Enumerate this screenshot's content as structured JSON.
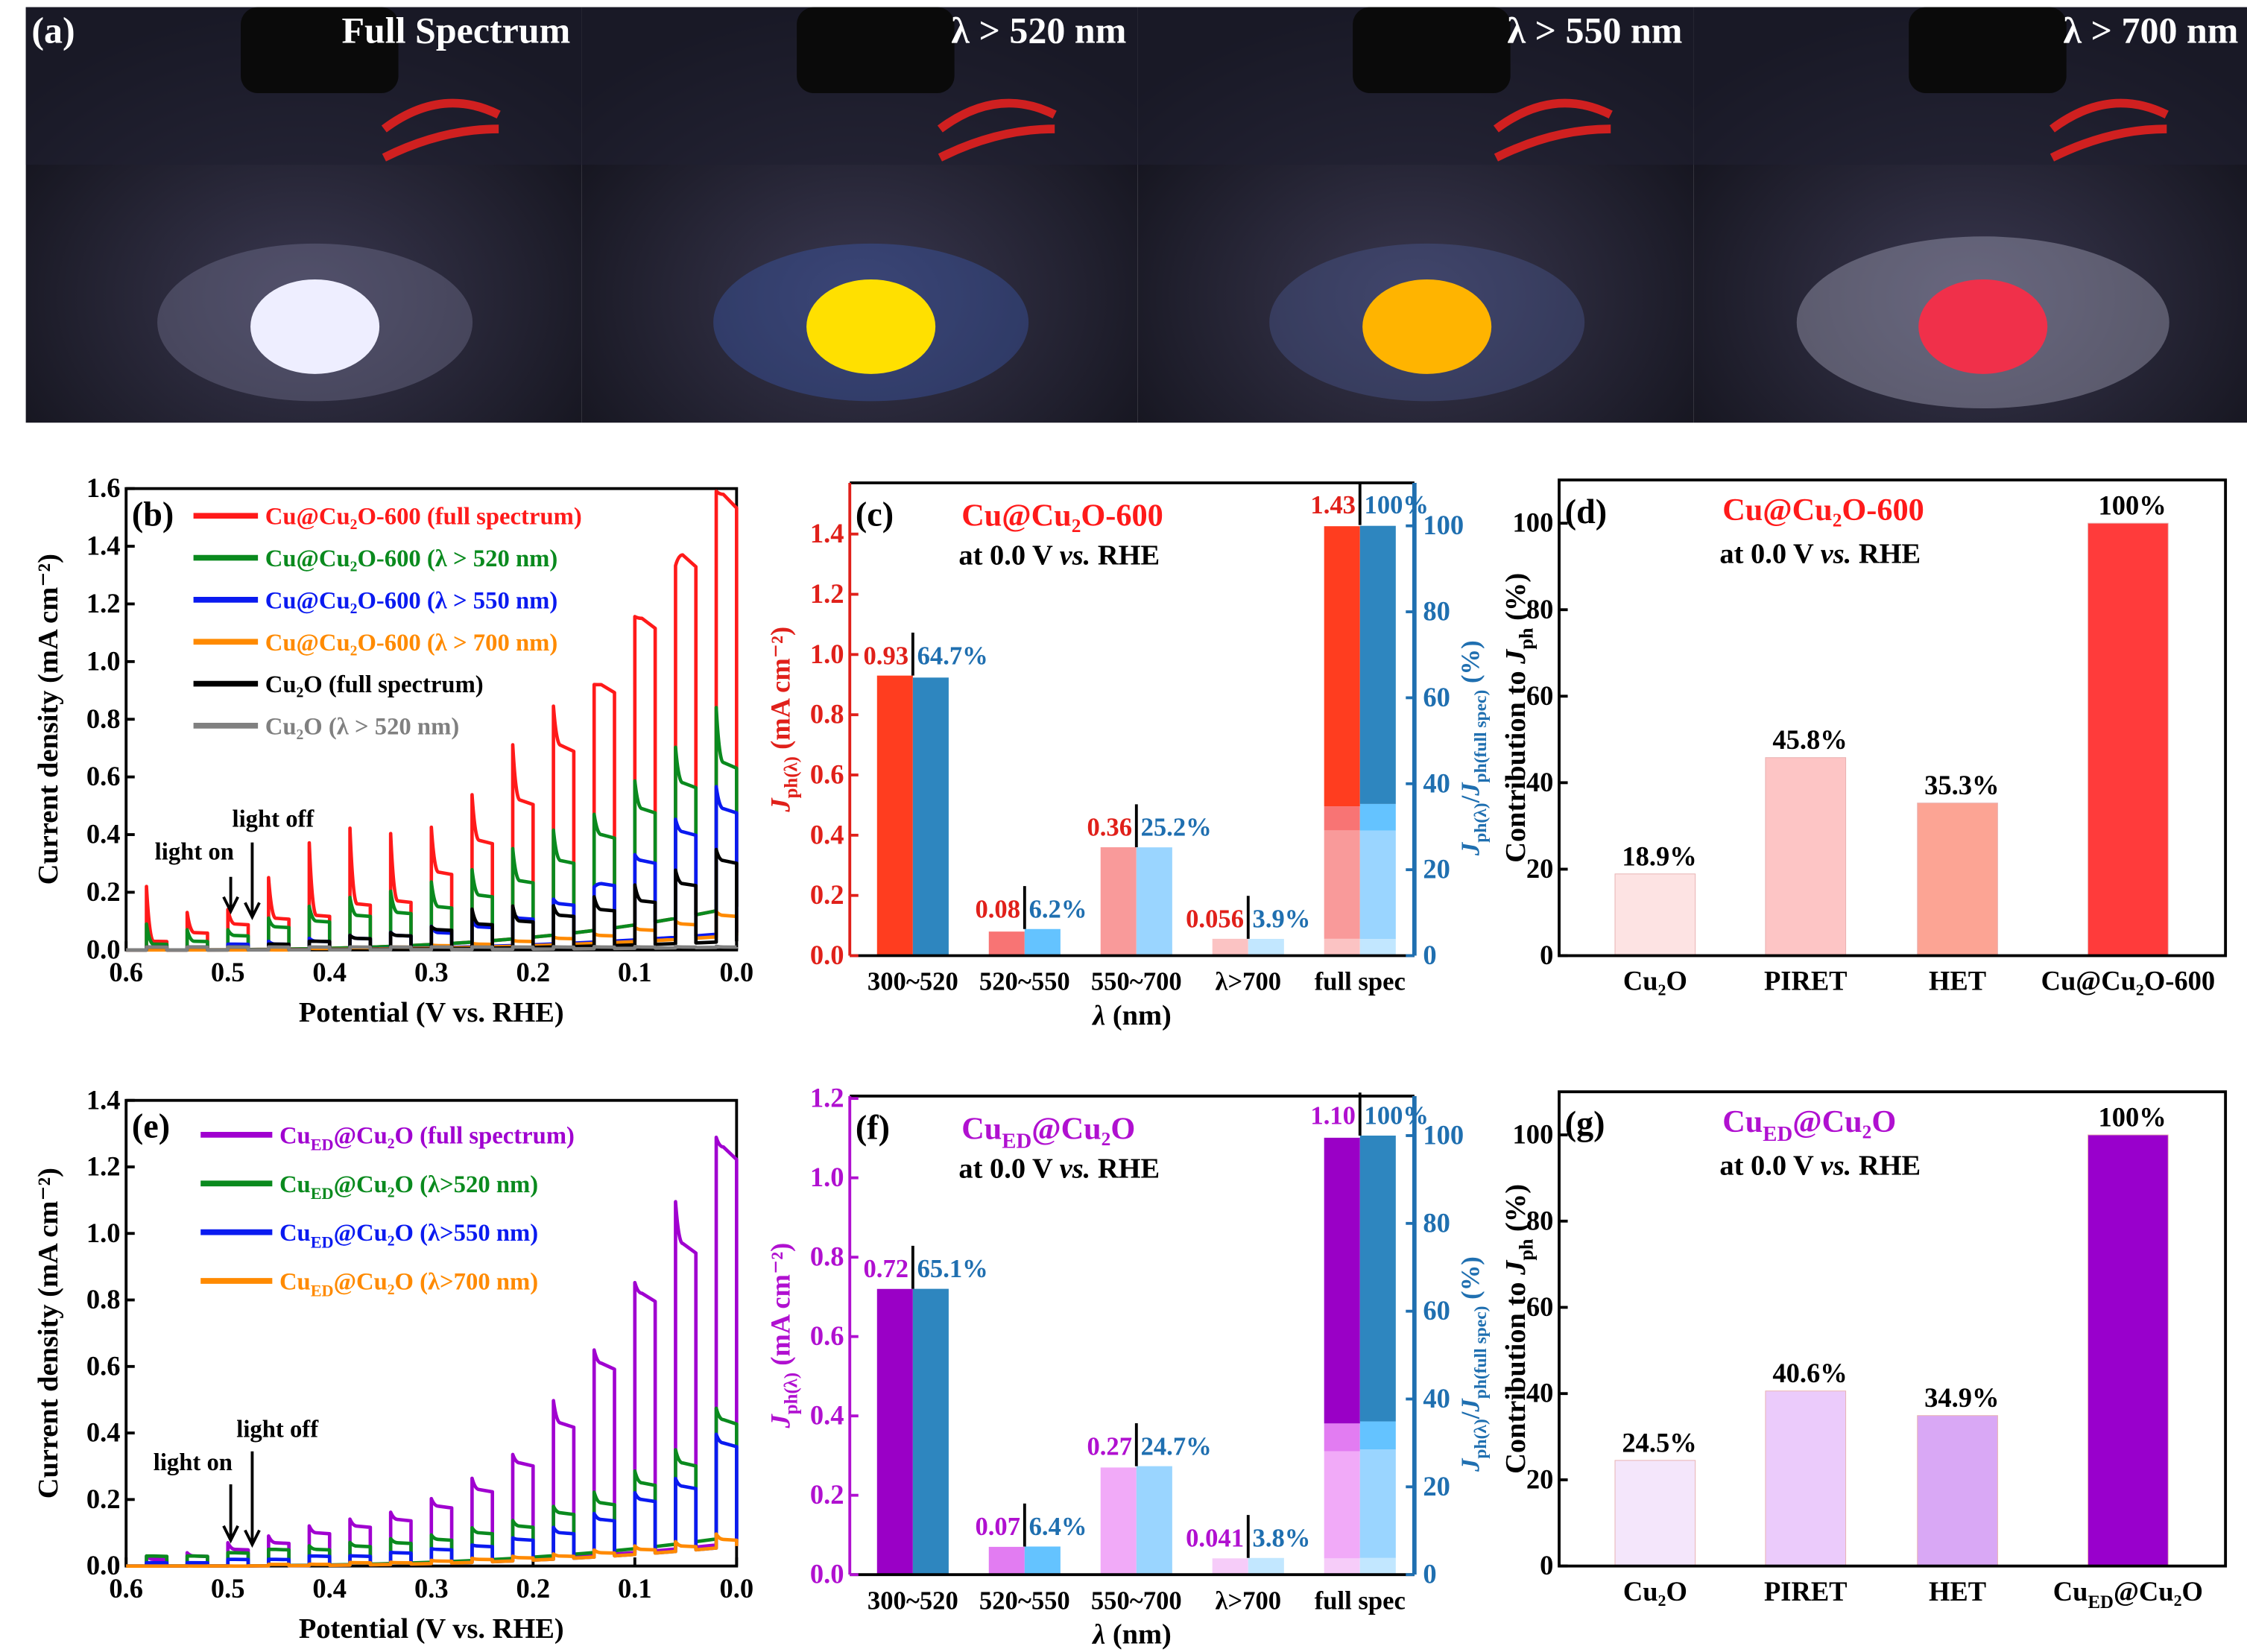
{
  "panel_a": {
    "label": "(a)",
    "photos": [
      {
        "caption": "Full Spectrum",
        "glow": "#EEEEFF",
        "halo": "#8080A0"
      },
      {
        "caption": "λ > 520 nm",
        "glow": "#FFE000",
        "halo": "#4060C0"
      },
      {
        "caption": "λ > 550 nm",
        "glow": "#FFB400",
        "halo": "#5060A0"
      },
      {
        "caption": "λ > 700 nm",
        "glow": "#F0304A",
        "halo": "#C0C0D8"
      }
    ]
  },
  "chart_data": [
    {
      "type": "line",
      "panel_label": "(b)",
      "xlabel": "Potential (V vs. RHE)",
      "ylabel": "Current density (mA cm⁻²)",
      "xlim": [
        0.6,
        0.0
      ],
      "ylim": [
        0,
        1.6
      ],
      "xticks": [
        "0.6",
        "0.5",
        "0.4",
        "0.3",
        "0.2",
        "0.1",
        "0.0"
      ],
      "yticks": [
        "0.0",
        "0.2",
        "0.4",
        "0.6",
        "0.8",
        "1.0",
        "1.2",
        "1.4",
        "1.6"
      ],
      "pulse_on_potentials": [
        0.58,
        0.54,
        0.5,
        0.46,
        0.42,
        0.38,
        0.34,
        0.3,
        0.26,
        0.22,
        0.18,
        0.14,
        0.1,
        0.06,
        0.02
      ],
      "pulse_width": 0.02,
      "annotations": {
        "light_on": "light on",
        "light_off": "light off"
      },
      "series": [
        {
          "name": "Cu@Cu₂O-600 (full spectrum)",
          "color": "#FF1A1A",
          "dark_at_0V": 0.15,
          "spikes": [
            0.22,
            0.13,
            0.14,
            0.25,
            0.37,
            0.42,
            0.4,
            0.42,
            0.53,
            0.7,
            0.83,
            0.9,
            1.13,
            1.3,
            1.55
          ],
          "plateaus": [
            0.03,
            0.06,
            0.09,
            0.11,
            0.12,
            0.16,
            0.17,
            0.27,
            0.38,
            0.52,
            0.71,
            0.92,
            1.15,
            1.37,
            1.58
          ]
        },
        {
          "name": "Cu@Cu₂O-600 (λ > 520 nm)",
          "color": "#0A8A1E",
          "dark_at_0V": 0.15,
          "spikes": [
            0.09,
            0.07,
            0.07,
            0.11,
            0.15,
            0.18,
            0.2,
            0.23,
            0.27,
            0.34,
            0.4,
            0.45,
            0.56,
            0.67,
            0.8
          ],
          "plateaus": [
            0.02,
            0.03,
            0.05,
            0.08,
            0.1,
            0.12,
            0.13,
            0.15,
            0.19,
            0.24,
            0.31,
            0.4,
            0.49,
            0.58,
            0.65
          ]
        },
        {
          "name": "Cu@Cu₂O-600 (λ > 550 nm)",
          "color": "#0A1AF0",
          "dark_at_0V": 0.06,
          "spikes": [
            0.01,
            0.01,
            0.02,
            0.03,
            0.04,
            0.05,
            0.06,
            0.08,
            0.1,
            0.13,
            0.17,
            0.21,
            0.32,
            0.44,
            0.55
          ],
          "plateaus": [
            0.01,
            0.01,
            0.02,
            0.02,
            0.03,
            0.04,
            0.05,
            0.06,
            0.08,
            0.11,
            0.16,
            0.23,
            0.31,
            0.41,
            0.49
          ]
        },
        {
          "name": "Cu@Cu₂O-600 (λ > 700 nm)",
          "color": "#FF8A00",
          "dark_at_0V": 0.05,
          "spikes": [
            0.0,
            0.0,
            0.0,
            0.0,
            0.005,
            0.008,
            0.01,
            0.015,
            0.02,
            0.03,
            0.04,
            0.05,
            0.07,
            0.09,
            0.12
          ],
          "plateaus": [
            0.0,
            0.0,
            0.0,
            0.0,
            0.005,
            0.008,
            0.01,
            0.015,
            0.02,
            0.03,
            0.04,
            0.05,
            0.07,
            0.09,
            0.12
          ]
        },
        {
          "name": "Cu₂O (full spectrum)",
          "color": "#000000",
          "dark_at_0V": 0.03,
          "spikes": [
            0.01,
            0.01,
            0.01,
            0.02,
            0.03,
            0.05,
            0.06,
            0.08,
            0.14,
            0.15,
            0.15,
            0.18,
            0.22,
            0.27,
            0.34
          ],
          "plateaus": [
            0.01,
            0.01,
            0.01,
            0.02,
            0.03,
            0.04,
            0.05,
            0.07,
            0.09,
            0.1,
            0.12,
            0.14,
            0.17,
            0.23,
            0.31
          ]
        },
        {
          "name": "Cu₂O (λ > 520 nm)",
          "color": "#808080",
          "dark_at_0V": 0.01,
          "spikes": [
            0.01,
            0.01,
            0.01,
            0.01,
            0.01,
            0.01,
            0.01,
            0.01,
            0.01,
            0.01,
            0.01,
            0.01,
            0.01,
            0.01,
            0.01
          ],
          "plateaus": [
            0.01,
            0.01,
            0.01,
            0.01,
            0.01,
            0.01,
            0.01,
            0.01,
            0.01,
            0.01,
            0.01,
            0.01,
            0.01,
            0.01,
            0.01
          ]
        }
      ]
    },
    {
      "type": "bar",
      "panel_label": "(c)",
      "title": "Cu@Cu₂O-600",
      "title_color": "#FF1A1A",
      "subtitle": [
        {
          "t": "at 0.0 V "
        },
        {
          "t": "vs.",
          "i": true
        },
        {
          "t": " RHE"
        }
      ],
      "xlabel": [
        {
          "t": "λ",
          "i": true
        },
        {
          "t": " (nm)"
        }
      ],
      "ylabel": [
        {
          "t": "J",
          "i": true
        },
        {
          "t": "ph(λ)",
          "sub": true
        },
        {
          "t": " (mA cm⁻²)"
        }
      ],
      "ylabel_right": [
        {
          "t": "J",
          "i": true
        },
        {
          "t": "ph(λ)",
          "sub": true
        },
        {
          "t": "/"
        },
        {
          "t": "J",
          "i": true
        },
        {
          "t": "ph(full spec)",
          "sub": true
        },
        {
          "t": " (%)"
        }
      ],
      "categories": [
        "300~520",
        "520~550",
        "550~700",
        "λ>700",
        "full spec"
      ],
      "left_values": [
        0.93,
        0.08,
        0.36,
        0.056,
        1.43
      ],
      "right_values": [
        64.7,
        6.2,
        25.2,
        3.9,
        100
      ],
      "left_labels": [
        "0.93",
        "0.08",
        "0.36",
        "0.056",
        "1.43"
      ],
      "right_labels": [
        "64.7%",
        "6.2%",
        "25.2%",
        "3.9%",
        "100%"
      ],
      "ylim": [
        0,
        1.57
      ],
      "ylim_right": [
        0,
        110
      ],
      "yticks": [
        "0.0",
        "0.2",
        "0.4",
        "0.6",
        "0.8",
        "1.0",
        "1.2",
        "1.4"
      ],
      "yticks_right": [
        "0",
        "20",
        "40",
        "60",
        "80",
        "100"
      ],
      "left_axis_color": "#E0201A",
      "right_axis_color": "#1F6FB0",
      "colors_left": [
        "#FF3D1F",
        "#F87474",
        "#F99A9A",
        "#FBC3C3"
      ],
      "colors_right": [
        "#2E86BF",
        "#64C3FF",
        "#9AD5FF",
        "#C2E7FF"
      ],
      "full_spec_stacked": true
    },
    {
      "type": "bar",
      "panel_label": "(d)",
      "title": "Cu@Cu₂O-600",
      "title_color": "#FF1A1A",
      "subtitle": [
        {
          "t": "at 0.0 V "
        },
        {
          "t": "vs.",
          "i": true
        },
        {
          "t": " RHE"
        }
      ],
      "ylabel": [
        {
          "t": "Contribution to "
        },
        {
          "t": "J",
          "i": true
        },
        {
          "t": "ph",
          "sub": true
        },
        {
          "t": " (%)"
        }
      ],
      "categories": [
        "Cu₂O",
        "PIRET",
        "HET",
        "Cu@Cu₂O-600"
      ],
      "values": [
        18.9,
        45.8,
        35.3,
        100
      ],
      "labels": [
        "18.9%",
        "45.8%",
        "35.3%",
        "100%"
      ],
      "ylim": [
        0,
        110
      ],
      "yticks": [
        "0",
        "20",
        "40",
        "60",
        "80",
        "100"
      ],
      "colors": [
        "#FDE3E3",
        "#FDC5C5",
        "#FCA494",
        "#FF3B3B"
      ]
    },
    {
      "type": "line",
      "panel_label": "(e)",
      "xlabel": "Potential (V vs. RHE)",
      "ylabel": "Current density (mA cm⁻²)",
      "xlim": [
        0.6,
        0.0
      ],
      "ylim": [
        0,
        1.4
      ],
      "xticks": [
        "0.6",
        "0.5",
        "0.4",
        "0.3",
        "0.2",
        "0.1",
        "0.0"
      ],
      "yticks": [
        "0.0",
        "0.2",
        "0.4",
        "0.6",
        "0.8",
        "1.0",
        "1.2",
        "1.4"
      ],
      "pulse_on_potentials": [
        0.58,
        0.54,
        0.5,
        0.46,
        0.42,
        0.38,
        0.34,
        0.3,
        0.26,
        0.22,
        0.18,
        0.14,
        0.1,
        0.06,
        0.02
      ],
      "pulse_width": 0.02,
      "annotations": {
        "light_on": "light on",
        "light_off": "light off"
      },
      "series": [
        {
          "name": [
            {
              "t": "Cu"
            },
            {
              "t": "ED",
              "sub": true
            },
            {
              "t": "@Cu₂O (full spectrum)"
            }
          ],
          "color": "#A000D0",
          "dark_at_0V": 0.07,
          "spikes": [
            0.03,
            0.04,
            0.07,
            0.09,
            0.12,
            0.14,
            0.16,
            0.2,
            0.26,
            0.33,
            0.49,
            0.64,
            0.84,
            1.08,
            1.27
          ],
          "plateaus": [
            0.02,
            0.03,
            0.05,
            0.07,
            0.1,
            0.12,
            0.14,
            0.18,
            0.23,
            0.31,
            0.43,
            0.61,
            0.82,
            0.97,
            1.26
          ]
        },
        {
          "name": [
            {
              "t": "Cu"
            },
            {
              "t": "ED",
              "sub": true
            },
            {
              "t": "@Cu₂O (λ>520 nm)"
            }
          ],
          "color": "#0A8A1E",
          "dark_at_0V": 0.09,
          "spikes": [
            0.03,
            0.03,
            0.04,
            0.05,
            0.06,
            0.07,
            0.08,
            0.09,
            0.11,
            0.13,
            0.17,
            0.21,
            0.27,
            0.33,
            0.45
          ],
          "plateaus": [
            0.03,
            0.03,
            0.04,
            0.05,
            0.05,
            0.06,
            0.07,
            0.08,
            0.1,
            0.12,
            0.16,
            0.19,
            0.25,
            0.31,
            0.44
          ]
        },
        {
          "name": [
            {
              "t": "Cu"
            },
            {
              "t": "ED",
              "sub": true
            },
            {
              "t": "@Cu₂O (λ>550 nm)"
            }
          ],
          "color": "#0A1AF0",
          "dark_at_0V": 0.06,
          "spikes": [
            0.01,
            0.01,
            0.02,
            0.02,
            0.03,
            0.03,
            0.04,
            0.05,
            0.06,
            0.08,
            0.11,
            0.15,
            0.21,
            0.25,
            0.38
          ],
          "plateaus": [
            0.01,
            0.01,
            0.02,
            0.02,
            0.03,
            0.03,
            0.04,
            0.05,
            0.06,
            0.08,
            0.1,
            0.14,
            0.2,
            0.24,
            0.37
          ]
        },
        {
          "name": [
            {
              "t": "Cu"
            },
            {
              "t": "ED",
              "sub": true
            },
            {
              "t": "@Cu₂O (λ>700 nm)"
            }
          ],
          "color": "#FF8A00",
          "dark_at_0V": 0.06,
          "spikes": [
            0.0,
            0.0,
            0.0,
            0.005,
            0.005,
            0.01,
            0.01,
            0.015,
            0.02,
            0.025,
            0.03,
            0.04,
            0.05,
            0.06,
            0.08
          ],
          "plateaus": [
            0.0,
            0.0,
            0.0,
            0.005,
            0.005,
            0.01,
            0.01,
            0.015,
            0.02,
            0.025,
            0.03,
            0.04,
            0.05,
            0.06,
            0.08
          ]
        }
      ]
    },
    {
      "type": "bar",
      "panel_label": "(f)",
      "title": [
        {
          "t": "Cu"
        },
        {
          "t": "ED",
          "sub": true
        },
        {
          "t": "@Cu₂O"
        }
      ],
      "title_color": "#B010D0",
      "subtitle": [
        {
          "t": "at 0.0 V "
        },
        {
          "t": "vs.",
          "i": true
        },
        {
          "t": " RHE"
        }
      ],
      "xlabel": [
        {
          "t": "λ",
          "i": true
        },
        {
          "t": " (nm)"
        }
      ],
      "ylabel": [
        {
          "t": "J",
          "i": true
        },
        {
          "t": "ph(λ)",
          "sub": true
        },
        {
          "t": " (mA cm⁻²)"
        }
      ],
      "ylabel_right": [
        {
          "t": "J",
          "i": true
        },
        {
          "t": "ph(λ)",
          "sub": true
        },
        {
          "t": "/"
        },
        {
          "t": "J",
          "i": true
        },
        {
          "t": "ph(full spec)",
          "sub": true
        },
        {
          "t": " (%)"
        }
      ],
      "categories": [
        "300~520",
        "520~550",
        "550~700",
        "λ>700",
        "full spec"
      ],
      "left_values": [
        0.72,
        0.07,
        0.27,
        0.041,
        1.1
      ],
      "right_values": [
        65.1,
        6.4,
        24.7,
        3.8,
        100
      ],
      "left_labels": [
        "0.72",
        "0.07",
        "0.27",
        "0.041",
        "1.10"
      ],
      "right_labels": [
        "65.1%",
        "6.4%",
        "24.7%",
        "3.8%",
        "100%"
      ],
      "ylim": [
        0,
        1.206
      ],
      "ylim_right": [
        0,
        109
      ],
      "yticks": [
        "0.0",
        "0.2",
        "0.4",
        "0.6",
        "0.8",
        "1.0",
        "1.2"
      ],
      "yticks_right": [
        "0",
        "20",
        "40",
        "60",
        "80",
        "100"
      ],
      "left_axis_color": "#B010D0",
      "right_axis_color": "#1F6FB0",
      "colors_left": [
        "#9A00C6",
        "#E27CF2",
        "#F1AAF8",
        "#F6CCF9"
      ],
      "colors_right": [
        "#2E86BF",
        "#64C3FF",
        "#9AD5FF",
        "#C2E7FF"
      ],
      "full_spec_stacked": true
    },
    {
      "type": "bar",
      "panel_label": "(g)",
      "title": [
        {
          "t": "Cu"
        },
        {
          "t": "ED",
          "sub": true
        },
        {
          "t": "@Cu₂O"
        }
      ],
      "title_color": "#B010D0",
      "subtitle": [
        {
          "t": "at 0.0 V "
        },
        {
          "t": "vs.",
          "i": true
        },
        {
          "t": " RHE"
        }
      ],
      "ylabel": [
        {
          "t": "Contribution to "
        },
        {
          "t": "J",
          "i": true
        },
        {
          "t": "ph",
          "sub": true
        },
        {
          "t": " (%)"
        }
      ],
      "categories": [
        "Cu₂O",
        "PIRET",
        "HET",
        [
          {
            "t": "Cu"
          },
          {
            "t": "ED",
            "sub": true
          },
          {
            "t": "@Cu₂O"
          }
        ]
      ],
      "values": [
        24.5,
        40.6,
        34.9,
        100
      ],
      "labels": [
        "24.5%",
        "40.6%",
        "34.9%",
        "100%"
      ],
      "ylim": [
        0,
        110
      ],
      "yticks": [
        "0",
        "20",
        "40",
        "60",
        "80",
        "100"
      ],
      "colors": [
        "#F4E6FB",
        "#EBCBFB",
        "#D9A8F5",
        "#9900CC"
      ]
    }
  ]
}
